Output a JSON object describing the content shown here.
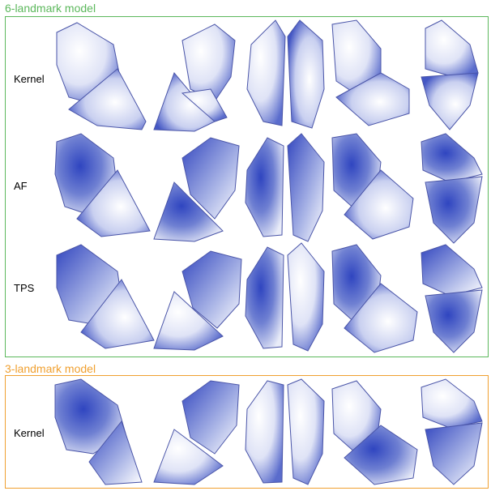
{
  "sections": [
    {
      "title": "6-landmark model",
      "color": "#5cb85c",
      "rows": [
        {
          "label": "Kernel"
        },
        {
          "label": "AF"
        },
        {
          "label": "TPS"
        }
      ]
    },
    {
      "title": "3-landmark model",
      "color": "#f0a030",
      "rows": [
        {
          "label": "Kernel"
        }
      ]
    }
  ],
  "views": [
    "view-1",
    "view-2",
    "view-3",
    "view-4",
    "view-5"
  ],
  "colormap": {
    "high": "#2f45c0",
    "low": "#ffffff",
    "edge": "#4a55a8"
  }
}
